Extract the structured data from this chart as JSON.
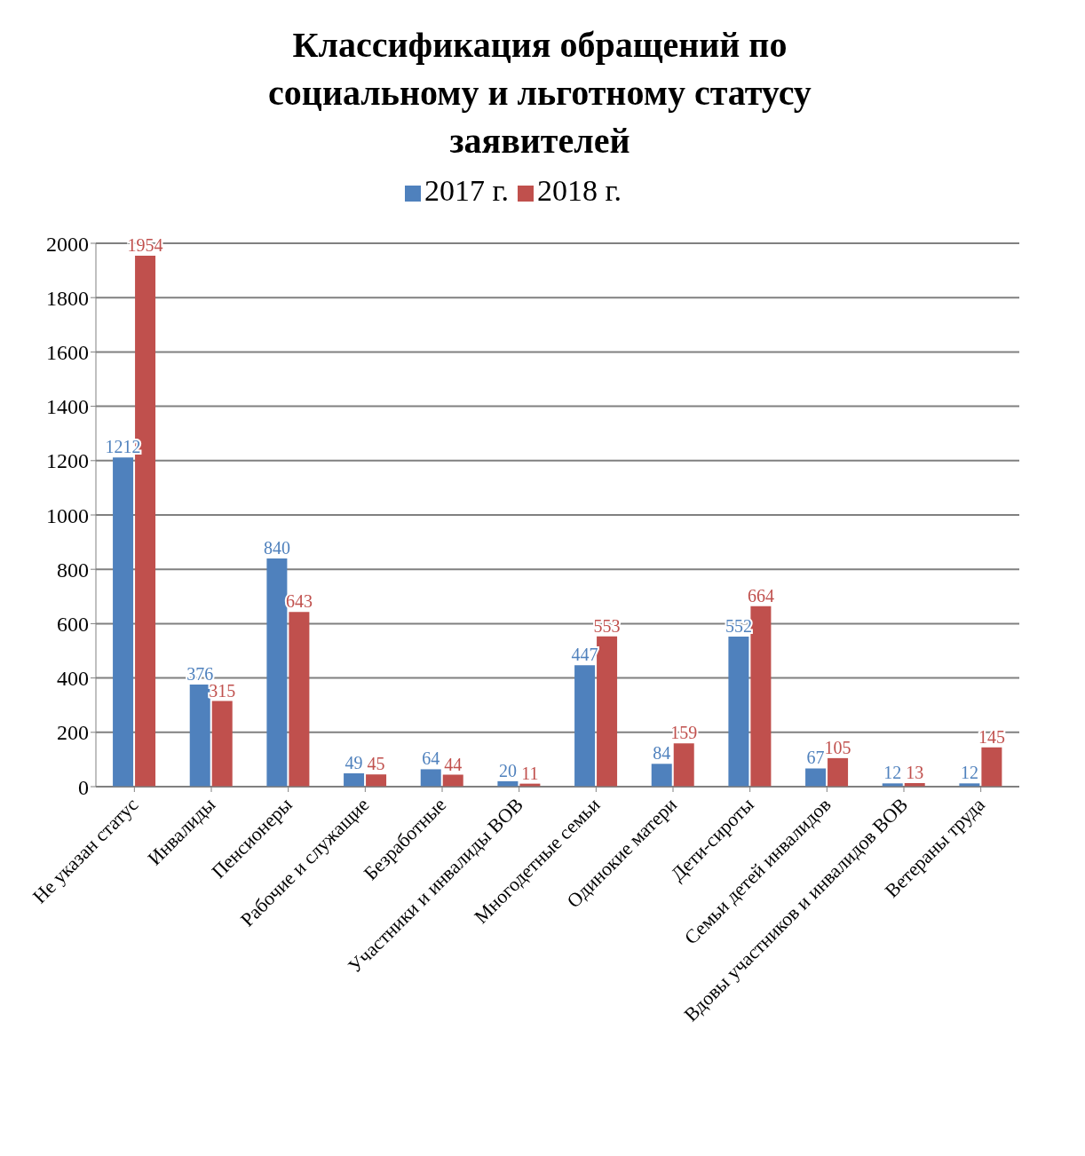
{
  "chart_data": {
    "type": "bar",
    "title": "Классификация обращений по социальному и льготному статусу заявителей",
    "categories": [
      "Не указан статус",
      "Инвалиды",
      "Пенсионеры",
      "Рабочие и служащие",
      "Безработные",
      "Участники и инвалиды ВОВ",
      "Многодетные семьи",
      "Одинокие матери",
      "Дети-сироты",
      "Семьи детей инвалидов",
      "Вдовы участников и инвалидов ВОВ",
      "Ветераны труда"
    ],
    "series": [
      {
        "name": "2017 г.",
        "color": "#4f81bd",
        "values": [
          1212,
          376,
          840,
          49,
          64,
          20,
          447,
          84,
          552,
          67,
          12,
          12
        ]
      },
      {
        "name": "2018 г.",
        "color": "#c0504d",
        "values": [
          1954,
          315,
          643,
          45,
          44,
          11,
          553,
          159,
          664,
          105,
          13,
          145
        ]
      }
    ],
    "ylim": [
      0,
      2000
    ],
    "yticks": [
      0,
      200,
      400,
      600,
      800,
      1000,
      1200,
      1400,
      1600,
      1800,
      2000
    ],
    "grid": "y",
    "legend": "top",
    "data_labels": true
  }
}
